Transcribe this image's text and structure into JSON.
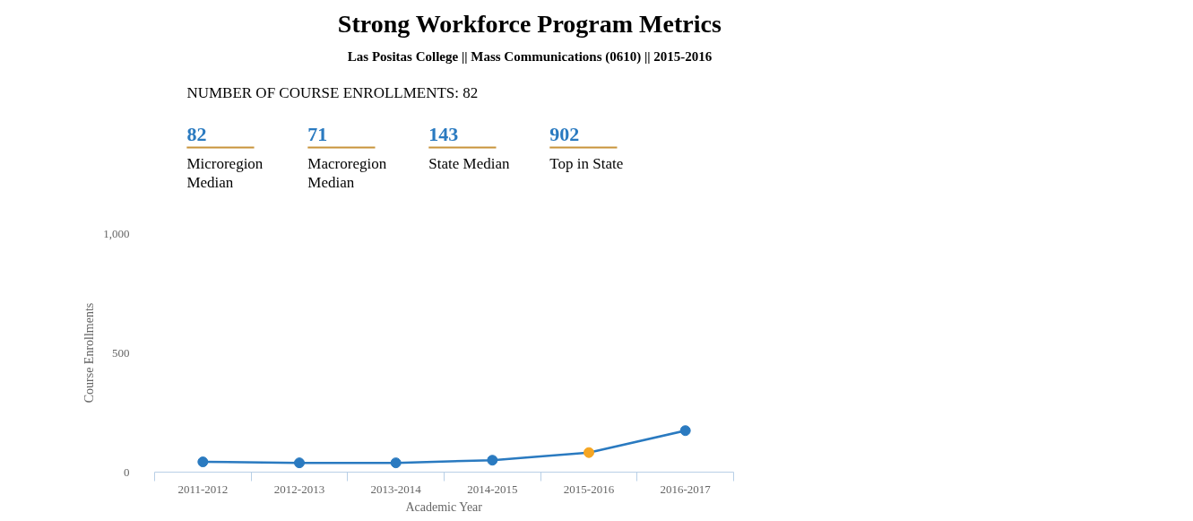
{
  "chart_data": [
    {
      "type": "other",
      "title": "Strong Workforce Program Metrics",
      "subtitle": "Las Positas College || Mass Communications (0610) || 2015-2016",
      "annotations": [
        "NUMBER OF COURSE ENROLLMENTS: 82"
      ],
      "categories": [
        "Microregion Median",
        "Macroregion Median",
        "State Median",
        "Top in State"
      ],
      "values": [
        82,
        71,
        143,
        902
      ],
      "color": "#2a7ac0",
      "data_labels": true
    },
    {
      "type": "line",
      "xlabel": "Academic Year",
      "ylabel": "Course Enrollments",
      "categories": [
        "2011-2012",
        "2012-2013",
        "2013-2014",
        "2014-2015",
        "2015-2016",
        "2016-2017"
      ],
      "values": [
        43,
        39,
        39,
        50,
        82,
        174
      ],
      "color": "#2a7ac0",
      "colors": [
        "#2a7ac0",
        "#2a7ac0",
        "#2a7ac0",
        "#2a7ac0",
        "#f5a623",
        "#2a7ac0"
      ],
      "marker": "circle",
      "ylim": [
        0,
        1000
      ],
      "yticks": [
        0,
        {
          "value": 500,
          "label": "500"
        },
        {
          "value": 1000,
          "label": "1,000"
        }
      ]
    }
  ]
}
